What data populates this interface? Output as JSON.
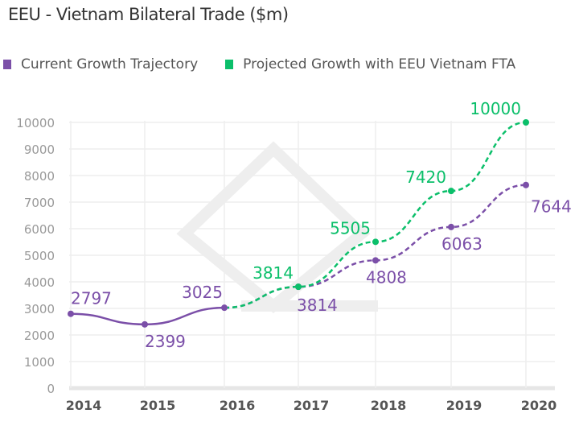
{
  "chart_data": {
    "type": "line",
    "title": "EEU - Vietnam Bilateral Trade ($m)",
    "categories": [
      "2014",
      "2015",
      "2016",
      "2017",
      "2018",
      "2019",
      "2020"
    ],
    "ylim": [
      0,
      10000
    ],
    "yticks": [
      0,
      1000,
      2000,
      3000,
      4000,
      5000,
      6000,
      7000,
      8000,
      9000,
      10000
    ],
    "grid": true,
    "legend_position": "top-left",
    "series": [
      {
        "name": "Current Growth Trajectory",
        "color": "#7b4fa8",
        "values": [
          2797,
          2399,
          3025,
          3814,
          4808,
          6063,
          7644
        ]
      },
      {
        "name": "Projected Growth with EEU Vietnam FTA",
        "color": "#0bbf6a",
        "values": [
          null,
          null,
          3025,
          3814,
          5505,
          7420,
          10000
        ]
      }
    ]
  }
}
